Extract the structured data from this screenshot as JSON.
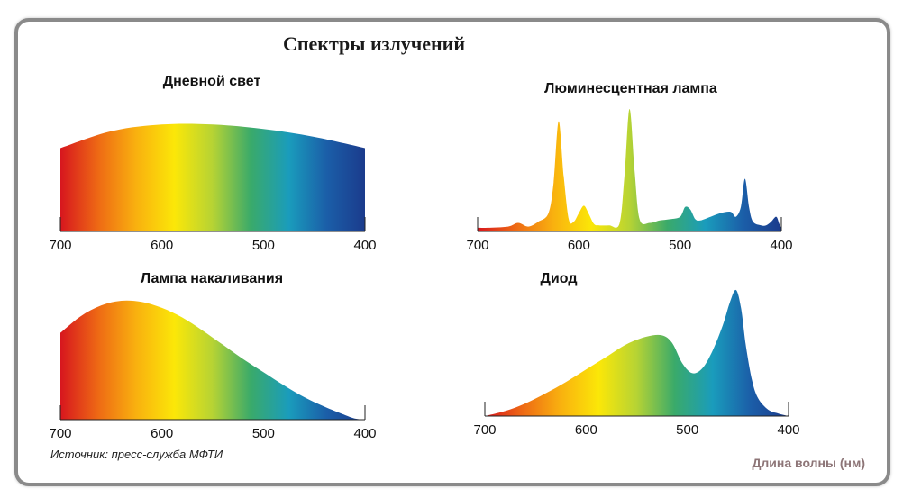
{
  "title": "Спектры излучений",
  "source": "Источник: пресс-служба МФТИ",
  "x_axis_caption": "Длина волны (нм)",
  "colors": {
    "frame": "#8a8a8a",
    "caption": "#8d7577",
    "spectrum": [
      "#d7161e",
      "#ee6a14",
      "#f9b10f",
      "#fbe708",
      "#b6d334",
      "#3aaa6a",
      "#1a9cbc",
      "#1b5ea8",
      "#1b3b8c"
    ]
  },
  "chart_data": [
    {
      "type": "area",
      "title": "Дневной свет",
      "x": [
        700,
        650,
        600,
        550,
        500,
        450,
        400
      ],
      "y": [
        0.74,
        0.89,
        0.95,
        0.95,
        0.91,
        0.84,
        0.74
      ],
      "xlim": [
        700,
        400
      ],
      "ylim": [
        0,
        1
      ],
      "xticks": [
        "700",
        "600",
        "500",
        "400"
      ]
    },
    {
      "type": "area",
      "title": "Люминесцентная лампа",
      "x": [
        700,
        690,
        670,
        660,
        650,
        640,
        630,
        625,
        620,
        615,
        610,
        605,
        600,
        595,
        590,
        585,
        580,
        570,
        560,
        555,
        550,
        545,
        540,
        530,
        520,
        510,
        500,
        495,
        490,
        485,
        480,
        470,
        460,
        450,
        445,
        440,
        436,
        432,
        428,
        420,
        415,
        410,
        405,
        402,
        400
      ],
      "y": [
        0.03,
        0.03,
        0.04,
        0.07,
        0.04,
        0.08,
        0.15,
        0.4,
        0.9,
        0.45,
        0.1,
        0.08,
        0.15,
        0.21,
        0.14,
        0.06,
        0.05,
        0.05,
        0.06,
        0.45,
        1.0,
        0.5,
        0.1,
        0.07,
        0.09,
        0.1,
        0.12,
        0.2,
        0.18,
        0.1,
        0.09,
        0.12,
        0.15,
        0.16,
        0.12,
        0.2,
        0.43,
        0.2,
        0.08,
        0.05,
        0.05,
        0.08,
        0.12,
        0.06,
        0.03
      ],
      "xlim": [
        700,
        400
      ],
      "ylim": [
        0,
        1
      ],
      "xticks": [
        "700",
        "600",
        "500",
        "400"
      ]
    },
    {
      "type": "area",
      "title": "Лампа накаливания",
      "x": [
        700,
        680,
        660,
        640,
        620,
        600,
        580,
        560,
        540,
        520,
        500,
        480,
        460,
        440,
        420,
        410,
        400
      ],
      "y": [
        0.73,
        0.87,
        0.96,
        1.0,
        0.99,
        0.94,
        0.86,
        0.75,
        0.63,
        0.51,
        0.4,
        0.29,
        0.19,
        0.11,
        0.04,
        0.01,
        0.0
      ],
      "xlim": [
        700,
        400
      ],
      "ylim": [
        0,
        1
      ],
      "xticks": [
        "700",
        "600",
        "500",
        "400"
      ]
    },
    {
      "type": "area",
      "title": "Диод",
      "x": [
        700,
        680,
        660,
        640,
        620,
        600,
        580,
        560,
        540,
        525,
        515,
        505,
        495,
        485,
        475,
        465,
        458,
        452,
        447,
        442,
        436,
        430,
        420,
        410,
        400
      ],
      "y": [
        0.0,
        0.04,
        0.1,
        0.18,
        0.27,
        0.37,
        0.47,
        0.57,
        0.63,
        0.64,
        0.58,
        0.42,
        0.34,
        0.38,
        0.52,
        0.72,
        0.9,
        1.0,
        0.86,
        0.55,
        0.28,
        0.14,
        0.05,
        0.02,
        0.0
      ],
      "xlim": [
        700,
        400
      ],
      "ylim": [
        0,
        1
      ],
      "xticks": [
        "700",
        "600",
        "500",
        "400"
      ]
    }
  ]
}
